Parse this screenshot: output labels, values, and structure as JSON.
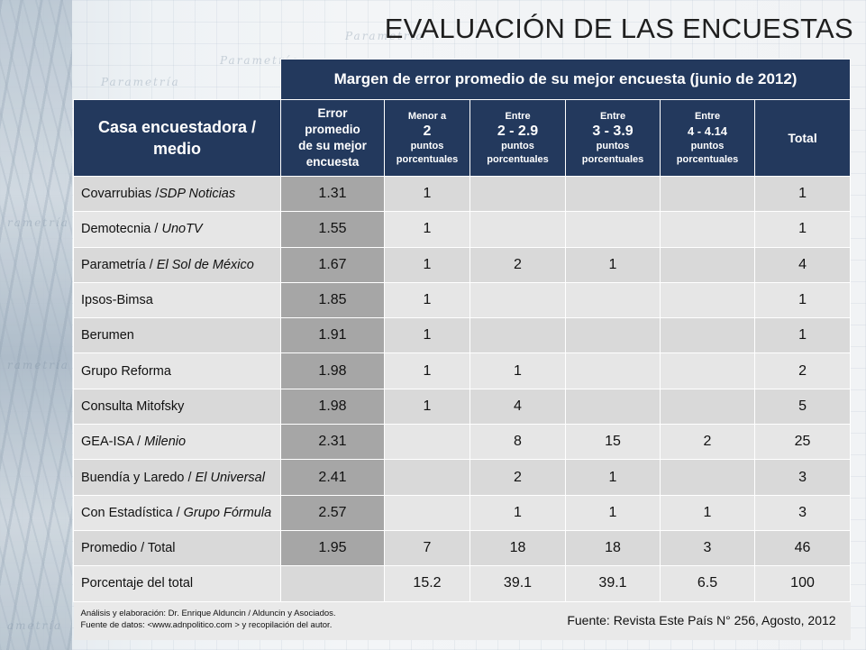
{
  "title": "EVALUACIÓN DE LAS ENCUESTAS",
  "table_caption": "Margen de error promedio de su mejor encuesta (junio de 2012)",
  "headers": {
    "casa": [
      "Casa encuestadora /",
      "medio"
    ],
    "error": [
      "Error",
      "promedio",
      "de su mejor",
      "encuesta"
    ],
    "menor": {
      "top": "Menor a",
      "range": "2",
      "sub1": "puntos",
      "sub2": "porcentuales"
    },
    "r2": {
      "top": "Entre",
      "range": "2 - 2.9",
      "sub1": "puntos",
      "sub2": "porcentuales"
    },
    "r3": {
      "top": "Entre",
      "range": "3 - 3.9",
      "sub1": "puntos",
      "sub2": "porcentuales"
    },
    "r4": {
      "top": "Entre",
      "range": "4 - 4.14",
      "sub1": "puntos",
      "sub2": "porcentuales"
    },
    "total": "Total"
  },
  "rows": [
    {
      "name": "Covarrubias /",
      "medio": "SDP Noticias",
      "error": "1.31",
      "c1": "1",
      "c2": "",
      "c3": "",
      "c4": "",
      "total": "1"
    },
    {
      "name": "Demotecnia /",
      "medio": "UnoTV",
      "error": "1.55",
      "c1": "1",
      "c2": "",
      "c3": "",
      "c4": "",
      "total": "1"
    },
    {
      "name": "Parametría /",
      "medio": "El Sol de México",
      "error": "1.67",
      "c1": "1",
      "c2": "2",
      "c3": "1",
      "c4": "",
      "total": "4"
    },
    {
      "name": "Ipsos-Bimsa",
      "medio": "",
      "error": "1.85",
      "c1": "1",
      "c2": "",
      "c3": "",
      "c4": "",
      "total": "1"
    },
    {
      "name": "Berumen",
      "medio": "",
      "error": "1.91",
      "c1": "1",
      "c2": "",
      "c3": "",
      "c4": "",
      "total": "1"
    },
    {
      "name": "Grupo Reforma",
      "medio": "",
      "error": "1.98",
      "c1": "1",
      "c2": "1",
      "c3": "",
      "c4": "",
      "total": "2"
    },
    {
      "name": "Consulta Mitofsky",
      "medio": "",
      "error": "1.98",
      "c1": "1",
      "c2": "4",
      "c3": "",
      "c4": "",
      "total": "5"
    },
    {
      "name": "GEA-ISA /",
      "medio": "Milenio",
      "error": "2.31",
      "c1": "",
      "c2": "8",
      "c3": "15",
      "c4": "2",
      "total": "25"
    },
    {
      "name": "Buendía y Laredo /",
      "medio": "El Universal",
      "error": "2.41",
      "c1": "",
      "c2": "2",
      "c3": "1",
      "c4": "",
      "total": "3"
    },
    {
      "name": "Con Estadística /",
      "medio": "Grupo Fórmula",
      "error": "2.57",
      "c1": "",
      "c2": "1",
      "c3": "1",
      "c4": "1",
      "total": "3"
    },
    {
      "name": "Promedio / Total",
      "medio": "",
      "error": "1.95",
      "c1": "7",
      "c2": "18",
      "c3": "18",
      "c4": "3",
      "total": "46"
    },
    {
      "name": "Porcentaje del total",
      "medio": "",
      "error": "",
      "c1": "15.2",
      "c2": "39.1",
      "c3": "39.1",
      "c4": "6.5",
      "total": "100"
    }
  ],
  "footer": {
    "analysis": "Análisis y elaboración: Dr. Enrique Alduncin / Alduncin y Asociados.",
    "source_data": "Fuente de datos: <www.adnpolitico.com > y recopilación del autor.",
    "source": "Fuente: Revista Este País N° 256, Agosto, 2012"
  },
  "background": {
    "words": [
      "Parametría",
      "Parametría",
      "Parametría",
      "rametría",
      "rametría",
      "ametría"
    ]
  }
}
